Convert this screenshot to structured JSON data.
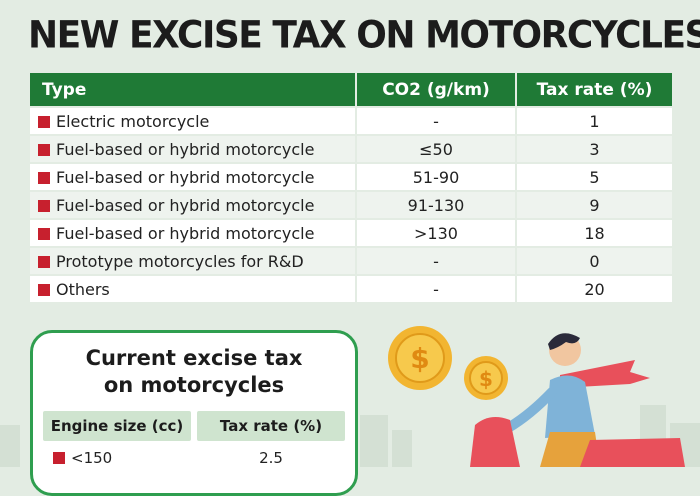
{
  "title": "NEW EXCISE TAX ON MOTORCYCLES",
  "main_table": {
    "headers": [
      "Type",
      "CO2 (g/km)",
      "Tax rate (%)"
    ],
    "rows": [
      {
        "type": "Electric motorcycle",
        "co2": "-",
        "rate": "1"
      },
      {
        "type": "Fuel-based or hybrid motorcycle",
        "co2": "≤50",
        "rate": "3"
      },
      {
        "type": "Fuel-based or hybrid motorcycle",
        "co2": "51-90",
        "rate": "5"
      },
      {
        "type": "Fuel-based or hybrid motorcycle",
        "co2": "91-130",
        "rate": "9"
      },
      {
        "type": "Fuel-based or hybrid motorcycle",
        "co2": ">130",
        "rate": "18"
      },
      {
        "type": "Prototype motorcycles for R&D",
        "co2": "-",
        "rate": "0"
      },
      {
        "type": "Others",
        "co2": "-",
        "rate": "20"
      }
    ]
  },
  "current_box": {
    "title_line1": "Current excise tax",
    "title_line2": "on motorcycles",
    "headers": [
      "Engine size (cc)",
      "Tax rate (%)"
    ],
    "rows": [
      {
        "engine": "<150",
        "rate": "2.5"
      }
    ]
  },
  "colors": {
    "background": "#e3ece3",
    "header_green": "#1f7a36",
    "bullet_red": "#c7202e",
    "box_border": "#2f9e4f",
    "coin_gold": "#f2b531"
  },
  "icons": [
    "dollar-coin-icon",
    "dollar-coin-icon",
    "rider-illustration"
  ]
}
